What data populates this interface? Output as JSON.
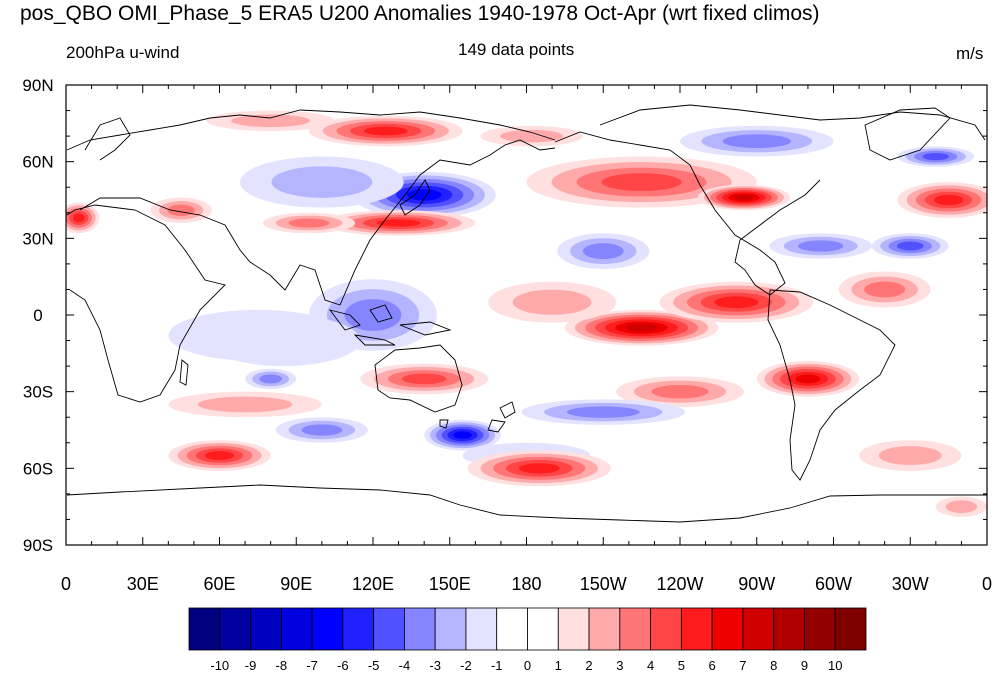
{
  "title": "pos_QBO OMI_Phase_5 ERA5 U200 Anomalies 1940-1978 Oct-Apr (wrt fixed climos)",
  "left_label": "200hPa u-wind",
  "center_label": "149 data points",
  "right_label": "m/s",
  "map": {
    "projection": "cylindrical-equidistant",
    "lon_range": [
      0,
      360
    ],
    "lat_range": [
      -90,
      90
    ],
    "lat_ticks": [
      {
        "value": 90,
        "label": "90N"
      },
      {
        "value": 60,
        "label": "60N"
      },
      {
        "value": 30,
        "label": "30N"
      },
      {
        "value": 0,
        "label": "0"
      },
      {
        "value": -30,
        "label": "30S"
      },
      {
        "value": -60,
        "label": "60S"
      },
      {
        "value": -90,
        "label": "90S"
      }
    ],
    "lon_ticks": [
      {
        "value": 0,
        "label": "0"
      },
      {
        "value": 30,
        "label": "30E"
      },
      {
        "value": 60,
        "label": "60E"
      },
      {
        "value": 90,
        "label": "90E"
      },
      {
        "value": 120,
        "label": "120E"
      },
      {
        "value": 150,
        "label": "150E"
      },
      {
        "value": 180,
        "label": "180"
      },
      {
        "value": 210,
        "label": "150W"
      },
      {
        "value": 240,
        "label": "120W"
      },
      {
        "value": 270,
        "label": "90W"
      },
      {
        "value": 300,
        "label": "60W"
      },
      {
        "value": 330,
        "label": "30W"
      },
      {
        "value": 360,
        "label": "0"
      }
    ],
    "anomaly_features": [
      {
        "lon": 140,
        "lat": 47,
        "value": -6,
        "rlon": 28,
        "rlat": 9
      },
      {
        "lon": 100,
        "lat": 52,
        "value": -2,
        "rlon": 32,
        "rlat": 10
      },
      {
        "lon": 130,
        "lat": 36,
        "value": 5,
        "rlon": 30,
        "rlat": 5
      },
      {
        "lon": 95,
        "lat": 36,
        "value": 3,
        "rlon": 18,
        "rlat": 4
      },
      {
        "lon": 125,
        "lat": 72,
        "value": 5,
        "rlon": 30,
        "rlat": 6
      },
      {
        "lon": 80,
        "lat": 76,
        "value": 2,
        "rlon": 25,
        "rlat": 4
      },
      {
        "lon": 182,
        "lat": 70,
        "value": 2,
        "rlon": 20,
        "rlat": 4
      },
      {
        "lon": 225,
        "lat": 52,
        "value": 4,
        "rlon": 45,
        "rlat": 10
      },
      {
        "lon": 265,
        "lat": 46,
        "value": 7,
        "rlon": 18,
        "rlat": 5
      },
      {
        "lon": 270,
        "lat": 68,
        "value": -3,
        "rlon": 30,
        "rlat": 6
      },
      {
        "lon": 340,
        "lat": 62,
        "value": -4,
        "rlon": 15,
        "rlat": 4
      },
      {
        "lon": 345,
        "lat": 45,
        "value": 5,
        "rlon": 20,
        "rlat": 7
      },
      {
        "lon": 5,
        "lat": 38,
        "value": 5,
        "rlon": 8,
        "rlat": 6
      },
      {
        "lon": 45,
        "lat": 41,
        "value": 3,
        "rlon": 12,
        "rlat": 5
      },
      {
        "lon": 295,
        "lat": 27,
        "value": -3,
        "rlon": 20,
        "rlat": 5
      },
      {
        "lon": 330,
        "lat": 27,
        "value": -4,
        "rlon": 15,
        "rlat": 5
      },
      {
        "lon": 210,
        "lat": 25,
        "value": -3,
        "rlon": 18,
        "rlat": 7
      },
      {
        "lon": 320,
        "lat": 10,
        "value": 3,
        "rlon": 18,
        "rlat": 7
      },
      {
        "lon": 225,
        "lat": -5,
        "value": 7,
        "rlon": 30,
        "rlat": 7
      },
      {
        "lon": 262,
        "lat": 5,
        "value": 5,
        "rlon": 30,
        "rlat": 8
      },
      {
        "lon": 190,
        "lat": 5,
        "value": 2,
        "rlon": 25,
        "rlat": 8
      },
      {
        "lon": 120,
        "lat": 0,
        "value": -3,
        "rlon": 25,
        "rlat": 14
      },
      {
        "lon": 85,
        "lat": -10,
        "value": -2,
        "rlon": 30,
        "rlat": 10
      },
      {
        "lon": 290,
        "lat": -25,
        "value": 6,
        "rlon": 20,
        "rlat": 7
      },
      {
        "lon": 240,
        "lat": -30,
        "value": 3,
        "rlon": 25,
        "rlat": 6
      },
      {
        "lon": 140,
        "lat": -25,
        "value": 4,
        "rlon": 25,
        "rlat": 6
      },
      {
        "lon": 210,
        "lat": -38,
        "value": -3,
        "rlon": 32,
        "rlat": 5
      },
      {
        "lon": 155,
        "lat": -47,
        "value": -6,
        "rlon": 15,
        "rlat": 6
      },
      {
        "lon": 180,
        "lat": -55,
        "value": -1,
        "rlon": 25,
        "rlat": 5
      },
      {
        "lon": 185,
        "lat": -60,
        "value": 5,
        "rlon": 28,
        "rlat": 7
      },
      {
        "lon": 60,
        "lat": -55,
        "value": 5,
        "rlon": 20,
        "rlat": 6
      },
      {
        "lon": 70,
        "lat": -35,
        "value": 2,
        "rlon": 30,
        "rlat": 5
      },
      {
        "lon": 80,
        "lat": -25,
        "value": -3,
        "rlon": 10,
        "rlat": 4
      },
      {
        "lon": 100,
        "lat": -45,
        "value": -3,
        "rlon": 18,
        "rlat": 5
      },
      {
        "lon": 330,
        "lat": -55,
        "value": 2,
        "rlon": 20,
        "rlat": 6
      },
      {
        "lon": 350,
        "lat": -75,
        "value": 2,
        "rlon": 10,
        "rlat": 4
      },
      {
        "lon": 75,
        "lat": -8,
        "value": -1,
        "rlon": 35,
        "rlat": 10
      }
    ]
  },
  "colorbar": {
    "colors": [
      "#000080",
      "#00009f",
      "#0000c0",
      "#0000df",
      "#0000ff",
      "#2121ff",
      "#5151ff",
      "#8585ff",
      "#b5b5ff",
      "#e3e3ff",
      "#ffffff",
      "#ffffff",
      "#ffdfdf",
      "#ffaaaa",
      "#ff7575",
      "#ff4545",
      "#ff1c1c",
      "#ef0000",
      "#d00000",
      "#b10000",
      "#930000",
      "#800000"
    ],
    "labels": [
      "-10",
      "-9",
      "-8",
      "-7",
      "-6",
      "-5",
      "-4",
      "-3",
      "-2",
      "-1",
      "0",
      "1",
      "2",
      "3",
      "4",
      "5",
      "6",
      "7",
      "8",
      "9",
      "10"
    ]
  }
}
